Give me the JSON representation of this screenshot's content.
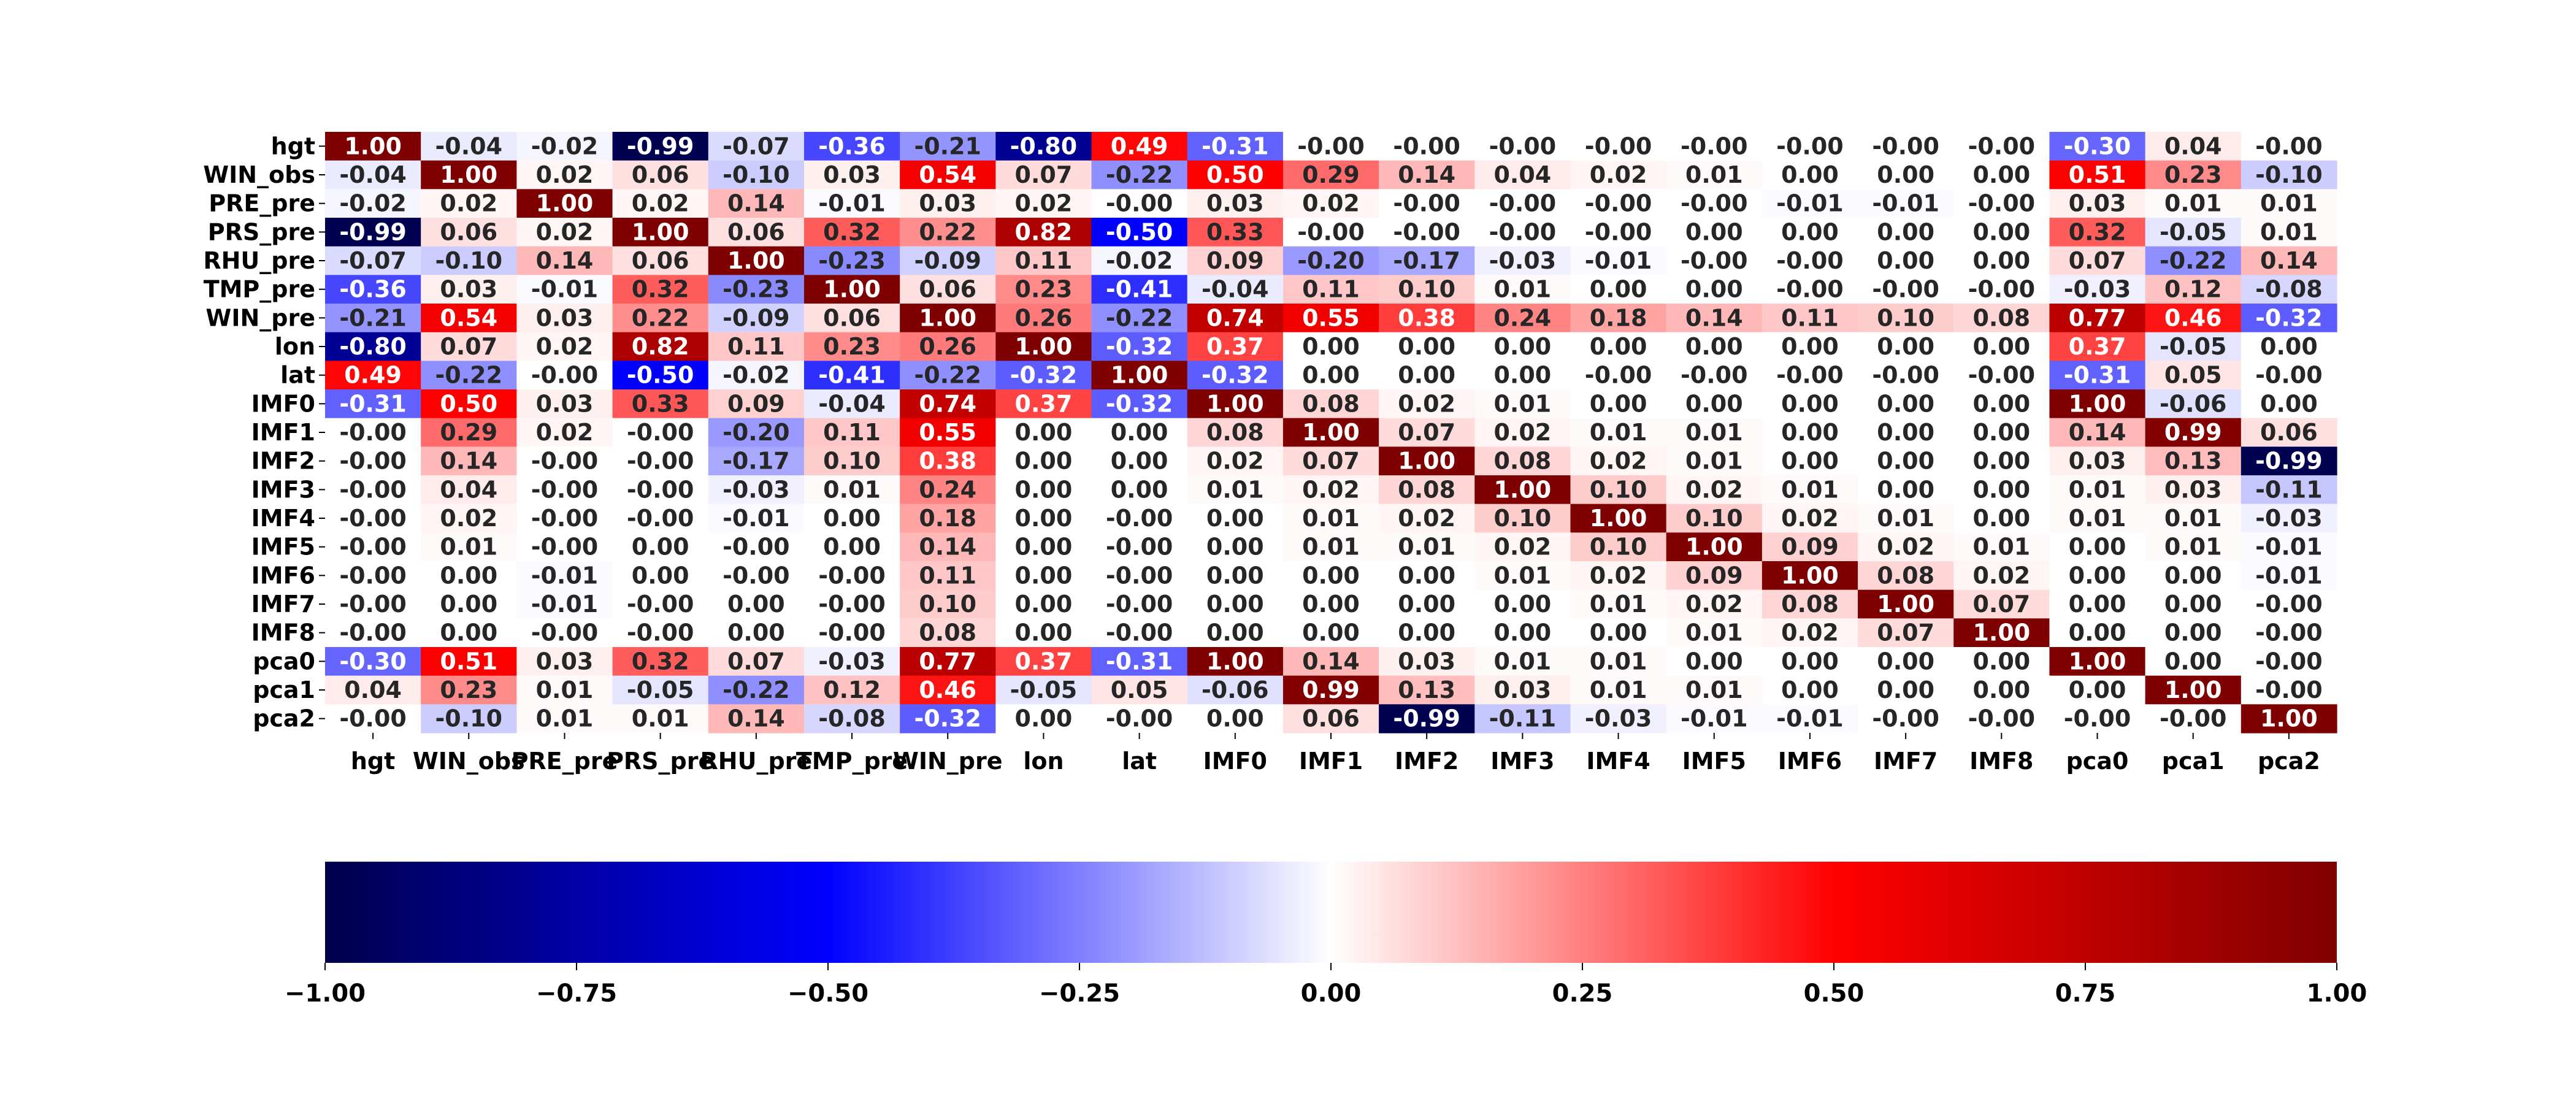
{
  "chart_data": {
    "type": "heatmap",
    "title": "",
    "xlabel": "",
    "ylabel": "",
    "labels": [
      "hgt",
      "WIN_obs",
      "PRE_pre",
      "PRS_pre",
      "RHU_pre",
      "TMP_pre",
      "WIN_pre",
      "lon",
      "lat",
      "IMF0",
      "IMF1",
      "IMF2",
      "IMF3",
      "IMF4",
      "IMF5",
      "IMF6",
      "IMF7",
      "IMF8",
      "pca0",
      "pca1",
      "pca2"
    ],
    "cell_labels": [
      [
        "1.00",
        "-0.04",
        "-0.02",
        "-0.99",
        "-0.07",
        "-0.36",
        "-0.21",
        "-0.80",
        "0.49",
        "-0.31",
        "-0.00",
        "-0.00",
        "-0.00",
        "-0.00",
        "-0.00",
        "-0.00",
        "-0.00",
        "-0.00",
        "-0.30",
        "0.04",
        "-0.00"
      ],
      [
        "-0.04",
        "1.00",
        "0.02",
        "0.06",
        "-0.10",
        "0.03",
        "0.54",
        "0.07",
        "-0.22",
        "0.50",
        "0.29",
        "0.14",
        "0.04",
        "0.02",
        "0.01",
        "0.00",
        "0.00",
        "0.00",
        "0.51",
        "0.23",
        "-0.10"
      ],
      [
        "-0.02",
        "0.02",
        "1.00",
        "0.02",
        "0.14",
        "-0.01",
        "0.03",
        "0.02",
        "-0.00",
        "0.03",
        "0.02",
        "-0.00",
        "-0.00",
        "-0.00",
        "-0.00",
        "-0.01",
        "-0.01",
        "-0.00",
        "0.03",
        "0.01",
        "0.01"
      ],
      [
        "-0.99",
        "0.06",
        "0.02",
        "1.00",
        "0.06",
        "0.32",
        "0.22",
        "0.82",
        "-0.50",
        "0.33",
        "-0.00",
        "-0.00",
        "-0.00",
        "-0.00",
        "0.00",
        "0.00",
        "0.00",
        "0.00",
        "0.32",
        "-0.05",
        "0.01"
      ],
      [
        "-0.07",
        "-0.10",
        "0.14",
        "0.06",
        "1.00",
        "-0.23",
        "-0.09",
        "0.11",
        "-0.02",
        "0.09",
        "-0.20",
        "-0.17",
        "-0.03",
        "-0.01",
        "-0.00",
        "-0.00",
        "0.00",
        "0.00",
        "0.07",
        "-0.22",
        "0.14"
      ],
      [
        "-0.36",
        "0.03",
        "-0.01",
        "0.32",
        "-0.23",
        "1.00",
        "0.06",
        "0.23",
        "-0.41",
        "-0.04",
        "0.11",
        "0.10",
        "0.01",
        "0.00",
        "0.00",
        "-0.00",
        "-0.00",
        "-0.00",
        "-0.03",
        "0.12",
        "-0.08"
      ],
      [
        "-0.21",
        "0.54",
        "0.03",
        "0.22",
        "-0.09",
        "0.06",
        "1.00",
        "0.26",
        "-0.22",
        "0.74",
        "0.55",
        "0.38",
        "0.24",
        "0.18",
        "0.14",
        "0.11",
        "0.10",
        "0.08",
        "0.77",
        "0.46",
        "-0.32"
      ],
      [
        "-0.80",
        "0.07",
        "0.02",
        "0.82",
        "0.11",
        "0.23",
        "0.26",
        "1.00",
        "-0.32",
        "0.37",
        "0.00",
        "0.00",
        "0.00",
        "0.00",
        "0.00",
        "0.00",
        "0.00",
        "0.00",
        "0.37",
        "-0.05",
        "0.00"
      ],
      [
        "0.49",
        "-0.22",
        "-0.00",
        "-0.50",
        "-0.02",
        "-0.41",
        "-0.22",
        "-0.32",
        "1.00",
        "-0.32",
        "0.00",
        "0.00",
        "0.00",
        "-0.00",
        "-0.00",
        "-0.00",
        "-0.00",
        "-0.00",
        "-0.31",
        "0.05",
        "-0.00"
      ],
      [
        "-0.31",
        "0.50",
        "0.03",
        "0.33",
        "0.09",
        "-0.04",
        "0.74",
        "0.37",
        "-0.32",
        "1.00",
        "0.08",
        "0.02",
        "0.01",
        "0.00",
        "0.00",
        "0.00",
        "0.00",
        "0.00",
        "1.00",
        "-0.06",
        "0.00"
      ],
      [
        "-0.00",
        "0.29",
        "0.02",
        "-0.00",
        "-0.20",
        "0.11",
        "0.55",
        "0.00",
        "0.00",
        "0.08",
        "1.00",
        "0.07",
        "0.02",
        "0.01",
        "0.01",
        "0.00",
        "0.00",
        "0.00",
        "0.14",
        "0.99",
        "0.06"
      ],
      [
        "-0.00",
        "0.14",
        "-0.00",
        "-0.00",
        "-0.17",
        "0.10",
        "0.38",
        "0.00",
        "0.00",
        "0.02",
        "0.07",
        "1.00",
        "0.08",
        "0.02",
        "0.01",
        "0.00",
        "0.00",
        "0.00",
        "0.03",
        "0.13",
        "-0.99"
      ],
      [
        "-0.00",
        "0.04",
        "-0.00",
        "-0.00",
        "-0.03",
        "0.01",
        "0.24",
        "0.00",
        "0.00",
        "0.01",
        "0.02",
        "0.08",
        "1.00",
        "0.10",
        "0.02",
        "0.01",
        "0.00",
        "0.00",
        "0.01",
        "0.03",
        "-0.11"
      ],
      [
        "-0.00",
        "0.02",
        "-0.00",
        "-0.00",
        "-0.01",
        "0.00",
        "0.18",
        "0.00",
        "-0.00",
        "0.00",
        "0.01",
        "0.02",
        "0.10",
        "1.00",
        "0.10",
        "0.02",
        "0.01",
        "0.00",
        "0.01",
        "0.01",
        "-0.03"
      ],
      [
        "-0.00",
        "0.01",
        "-0.00",
        "0.00",
        "-0.00",
        "0.00",
        "0.14",
        "0.00",
        "-0.00",
        "0.00",
        "0.01",
        "0.01",
        "0.02",
        "0.10",
        "1.00",
        "0.09",
        "0.02",
        "0.01",
        "0.00",
        "0.01",
        "-0.01"
      ],
      [
        "-0.00",
        "0.00",
        "-0.01",
        "0.00",
        "-0.00",
        "-0.00",
        "0.11",
        "0.00",
        "-0.00",
        "0.00",
        "0.00",
        "0.00",
        "0.01",
        "0.02",
        "0.09",
        "1.00",
        "0.08",
        "0.02",
        "0.00",
        "0.00",
        "-0.01"
      ],
      [
        "-0.00",
        "0.00",
        "-0.01",
        "-0.00",
        "0.00",
        "-0.00",
        "0.10",
        "0.00",
        "-0.00",
        "0.00",
        "0.00",
        "0.00",
        "0.00",
        "0.01",
        "0.02",
        "0.08",
        "1.00",
        "0.07",
        "0.00",
        "0.00",
        "-0.00"
      ],
      [
        "-0.00",
        "0.00",
        "-0.00",
        "-0.00",
        "0.00",
        "-0.00",
        "0.08",
        "0.00",
        "-0.00",
        "0.00",
        "0.00",
        "0.00",
        "0.00",
        "0.00",
        "0.01",
        "0.02",
        "0.07",
        "1.00",
        "0.00",
        "0.00",
        "-0.00"
      ],
      [
        "-0.30",
        "0.51",
        "0.03",
        "0.32",
        "0.07",
        "-0.03",
        "0.77",
        "0.37",
        "-0.31",
        "1.00",
        "0.14",
        "0.03",
        "0.01",
        "0.01",
        "0.00",
        "0.00",
        "0.00",
        "0.00",
        "1.00",
        "0.00",
        "-0.00"
      ],
      [
        "0.04",
        "0.23",
        "0.01",
        "-0.05",
        "-0.22",
        "0.12",
        "0.46",
        "-0.05",
        "0.05",
        "-0.06",
        "0.99",
        "0.13",
        "0.03",
        "0.01",
        "0.01",
        "0.00",
        "0.00",
        "0.00",
        "0.00",
        "1.00",
        "-0.00"
      ],
      [
        "-0.00",
        "-0.10",
        "0.01",
        "0.01",
        "0.14",
        "-0.08",
        "-0.32",
        "0.00",
        "-0.00",
        "0.00",
        "0.06",
        "-0.99",
        "-0.11",
        "-0.03",
        "-0.01",
        "-0.01",
        "-0.00",
        "-0.00",
        "-0.00",
        "-0.00",
        "1.00"
      ]
    ],
    "vmin": -1.0,
    "vmax": 1.0,
    "colormap": "seismic",
    "colormap_stops": [
      "#00004c",
      "#0000ff",
      "#ffffff",
      "#ff0000",
      "#7f0000"
    ],
    "colorbar": {
      "orientation": "horizontal",
      "placement": "bottom",
      "tick_labels": [
        "−1.00",
        "−0.75",
        "−0.50",
        "−0.25",
        "0.00",
        "0.25",
        "0.50",
        "0.75",
        "1.00"
      ],
      "tick_values": [
        -1.0,
        -0.75,
        -0.5,
        -0.25,
        0.0,
        0.25,
        0.5,
        0.75,
        1.0
      ]
    },
    "legend": "none",
    "grid": false
  }
}
